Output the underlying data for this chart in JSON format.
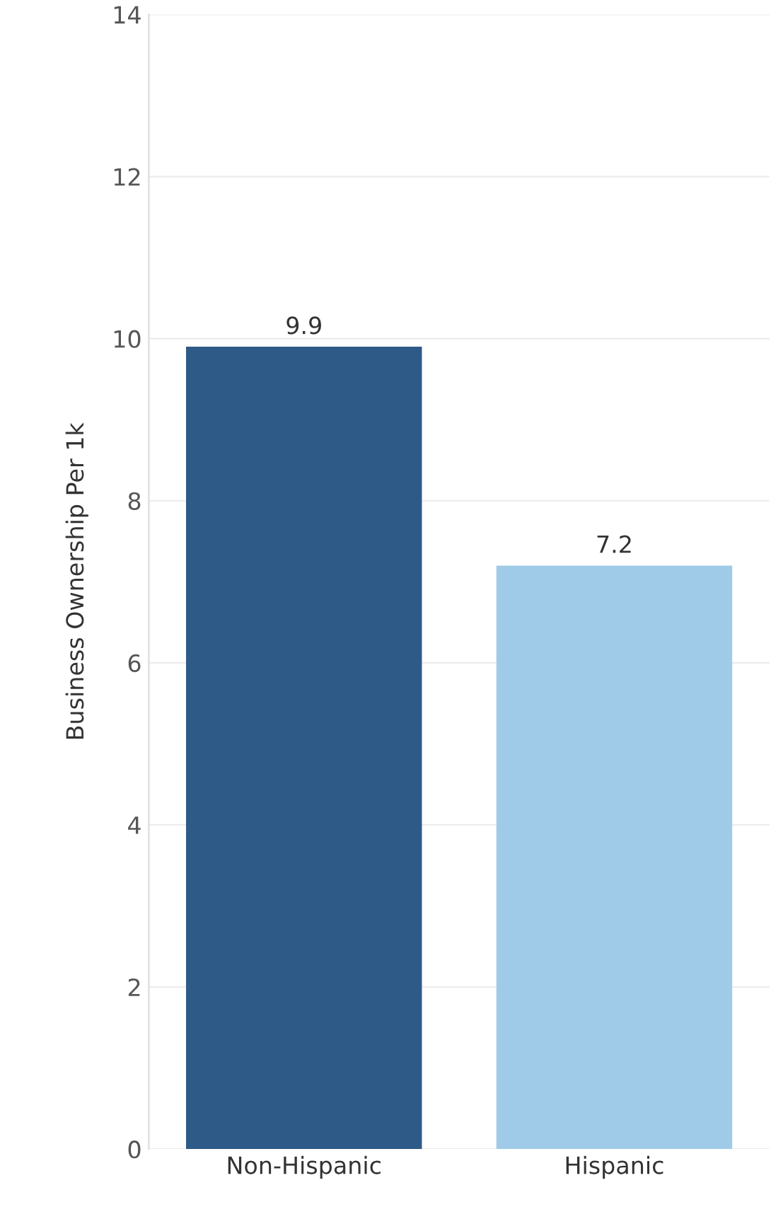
{
  "chart_data": {
    "type": "bar",
    "ylabel": "Business Ownership Per 1k",
    "categories": [
      "Non-Hispanic",
      "Hispanic"
    ],
    "values": [
      9.9,
      7.2
    ],
    "colors": [
      "#2e5a87",
      "#a0cbe8"
    ],
    "ylim": [
      0,
      14
    ],
    "yticks": [
      0,
      2,
      4,
      6,
      8,
      10,
      12,
      14
    ],
    "grid": "y",
    "data_labels": true
  }
}
